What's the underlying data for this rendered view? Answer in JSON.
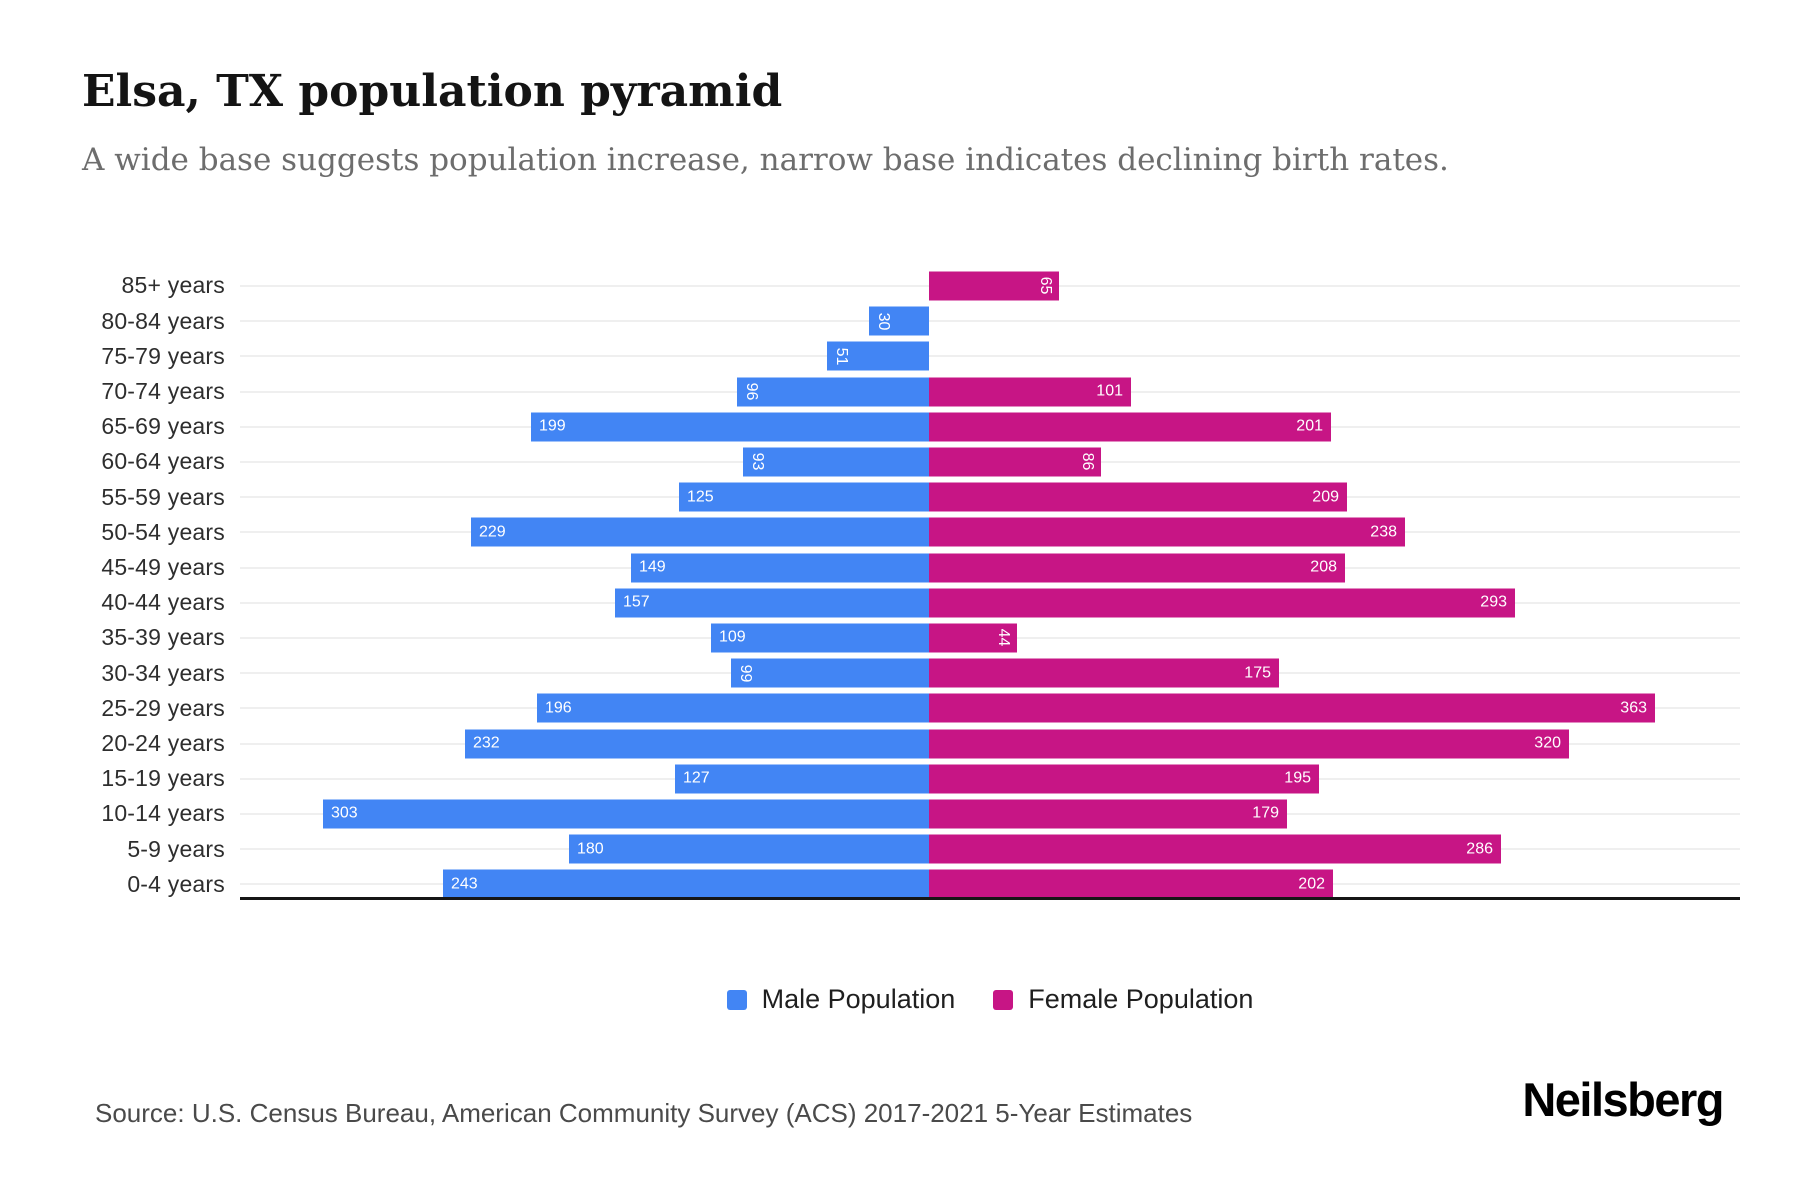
{
  "header": {
    "title": "Elsa, TX population pyramid",
    "subtitle": "A wide base suggests population increase, narrow base indicates declining birth rates."
  },
  "legend": {
    "male_label": "Male Population",
    "female_label": "Female Population"
  },
  "footer": {
    "source": "Source: U.S. Census Bureau, American Community Survey (ACS) 2017-2021 5-Year Estimates",
    "brand": "Neilsberg"
  },
  "colors": {
    "male": "#4285F4",
    "female": "#C71585",
    "bar_value_text": "#ffffff",
    "gridline": "#efefef",
    "axis_line": "#161616"
  },
  "chart_data": {
    "type": "bar",
    "variant": "population-pyramid",
    "orientation": "horizontal",
    "categories": [
      "85+ years",
      "80-84 years",
      "75-79 years",
      "70-74 years",
      "65-69 years",
      "60-64 years",
      "55-59 years",
      "50-54 years",
      "45-49 years",
      "40-44 years",
      "35-39 years",
      "30-34 years",
      "25-29 years",
      "20-24 years",
      "15-19 years",
      "10-14 years",
      "5-9 years",
      "0-4 years"
    ],
    "series": [
      {
        "name": "Male Population",
        "side": "left",
        "color": "#4285F4",
        "values": [
          0,
          30,
          51,
          96,
          199,
          93,
          125,
          229,
          149,
          157,
          109,
          99,
          196,
          232,
          127,
          303,
          180,
          243
        ]
      },
      {
        "name": "Female Population",
        "side": "right",
        "color": "#C71585",
        "values": [
          65,
          0,
          0,
          101,
          201,
          86,
          209,
          238,
          208,
          293,
          44,
          175,
          363,
          320,
          195,
          179,
          286,
          202
        ]
      }
    ],
    "value_labels": "inside-bar-outer-end",
    "rotated_value_label_below": 100,
    "axis": {
      "center_value": 0,
      "max_per_side": 370,
      "tick_labels_visible": false
    },
    "grid": true,
    "legend_position": "bottom-center"
  }
}
